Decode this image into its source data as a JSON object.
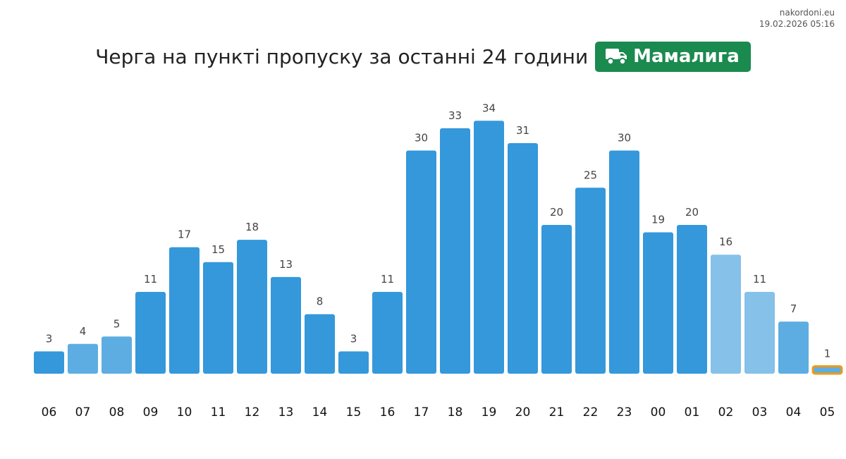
{
  "source": {
    "site": "nakordoni.eu",
    "timestamp": "19.02.2026 05:16"
  },
  "header": {
    "title": "Черга на пункті пропуску за останні 24 години",
    "checkpoint": "Мамалига",
    "checkpoint_icon": "truck-icon"
  },
  "colors": {
    "bar": "#3498db",
    "bar_medium": "#5dade2",
    "bar_light": "#85c1e9",
    "current_outline": "#f39c12",
    "badge": "#1b8a4f"
  },
  "chart_data": {
    "type": "bar",
    "categories": [
      "06",
      "07",
      "08",
      "09",
      "10",
      "11",
      "12",
      "13",
      "14",
      "15",
      "16",
      "17",
      "18",
      "19",
      "20",
      "21",
      "22",
      "23",
      "00",
      "01",
      "02",
      "03",
      "04",
      "05"
    ],
    "values": [
      3,
      4,
      5,
      11,
      17,
      15,
      18,
      13,
      8,
      3,
      11,
      30,
      33,
      34,
      31,
      20,
      25,
      30,
      19,
      20,
      16,
      11,
      7,
      1
    ],
    "bar_shade": [
      "dark",
      "medium",
      "medium",
      "dark",
      "dark",
      "dark",
      "dark",
      "dark",
      "dark",
      "dark",
      "dark",
      "dark",
      "dark",
      "dark",
      "dark",
      "dark",
      "dark",
      "dark",
      "dark",
      "dark",
      "light",
      "light",
      "medium",
      "medium"
    ],
    "highlighted_index": 23,
    "title": "Черга на пункті пропуску за останні 24 години",
    "xlabel": "",
    "ylabel": "",
    "ylim": [
      0,
      34
    ],
    "grid": false,
    "legend": "none"
  }
}
